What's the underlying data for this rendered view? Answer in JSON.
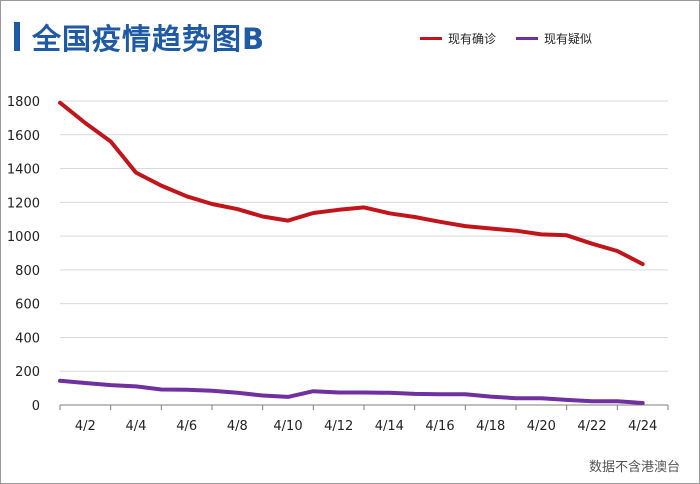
{
  "title": "全国疫情趋势图B",
  "source_note": "数据不含港澳台",
  "colors": {
    "confirmed": "#c0151a",
    "suspected": "#7030a0",
    "title": "#1f5aa6"
  },
  "chart_data": {
    "type": "line",
    "x": [
      "4/1",
      "4/2",
      "4/3",
      "4/4",
      "4/5",
      "4/6",
      "4/7",
      "4/8",
      "4/9",
      "4/10",
      "4/11",
      "4/12",
      "4/13",
      "4/14",
      "4/15",
      "4/16",
      "4/17",
      "4/18",
      "4/19",
      "4/20",
      "4/21",
      "4/22",
      "4/23",
      "4/24"
    ],
    "x_tick_labels": [
      "4/2",
      "4/4",
      "4/6",
      "4/8",
      "4/10",
      "4/12",
      "4/14",
      "4/16",
      "4/18",
      "4/20",
      "4/22",
      "4/24"
    ],
    "ylim": [
      0,
      1800
    ],
    "yticks": [
      0,
      200,
      400,
      600,
      800,
      1000,
      1200,
      1400,
      1600,
      1800
    ],
    "grid": true,
    "legend_position": "top-right",
    "series": [
      {
        "name": "现有确诊",
        "color": "#c0151a",
        "values": [
          1790,
          1670,
          1560,
          1376,
          1299,
          1236,
          1190,
          1160,
          1116,
          1092,
          1137,
          1156,
          1170,
          1135,
          1113,
          1085,
          1059,
          1045,
          1032,
          1010,
          1005,
          955,
          912,
          834
        ]
      },
      {
        "name": "现有疑似",
        "color": "#7030a0",
        "values": [
          143,
          130,
          118,
          110,
          92,
          90,
          84,
          72,
          56,
          48,
          82,
          74,
          74,
          72,
          66,
          64,
          64,
          50,
          40,
          40,
          30,
          22,
          22,
          12
        ]
      }
    ]
  }
}
